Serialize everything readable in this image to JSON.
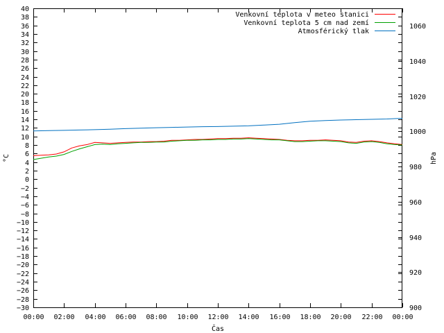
{
  "chart_data": {
    "type": "line",
    "xlabel": "Čas",
    "ylabel_left": "°C",
    "ylabel_right": "hPa",
    "x_ticks": [
      "00:00",
      "02:00",
      "04:00",
      "06:00",
      "08:00",
      "10:00",
      "12:00",
      "14:00",
      "16:00",
      "18:00",
      "20:00",
      "22:00",
      "00:00"
    ],
    "x_unit": "hours",
    "x_range": [
      0,
      24
    ],
    "ylim_left": [
      -30,
      40
    ],
    "ytick_step_left": 2,
    "ylim_right": [
      900,
      1070
    ],
    "ytick_step_right": 20,
    "right_ticks": [
      900,
      920,
      940,
      960,
      980,
      1000,
      1020,
      1040,
      1060
    ],
    "legend_position": "top-right",
    "grid": false,
    "series": [
      {
        "name": "Venkovní teplota v meteo stanici",
        "axis": "left",
        "color": "#ff0000",
        "x": [
          0,
          0.5,
          1,
          1.5,
          2,
          2.5,
          3,
          3.5,
          4,
          4.5,
          5,
          5.5,
          6,
          6.5,
          7,
          7.5,
          8,
          8.5,
          9,
          9.5,
          10,
          10.5,
          11,
          11.5,
          12,
          12.5,
          13,
          13.5,
          14,
          14.5,
          15,
          15.5,
          16,
          16.5,
          17,
          17.5,
          18,
          18.5,
          19,
          19.5,
          20,
          20.5,
          21,
          21.5,
          22,
          22.5,
          23,
          23.5,
          24
        ],
        "values": [
          5.5,
          5.6,
          5.7,
          5.9,
          6.4,
          7.3,
          7.8,
          8.1,
          8.6,
          8.5,
          8.4,
          8.5,
          8.6,
          8.7,
          8.7,
          8.8,
          8.8,
          8.9,
          9.1,
          9.1,
          9.2,
          9.3,
          9.3,
          9.4,
          9.5,
          9.5,
          9.6,
          9.6,
          9.7,
          9.6,
          9.5,
          9.4,
          9.3,
          9.1,
          9.0,
          9.0,
          9.1,
          9.1,
          9.2,
          9.1,
          9.0,
          8.7,
          8.6,
          8.9,
          9.0,
          8.8,
          8.5,
          8.3,
          8.1
        ]
      },
      {
        "name": "Venkovní teplota 5 cm nad zemí",
        "axis": "left",
        "color": "#00a000",
        "x": [
          0,
          0.5,
          1,
          1.5,
          2,
          2.5,
          3,
          3.5,
          4,
          4.5,
          5,
          5.5,
          6,
          6.5,
          7,
          7.5,
          8,
          8.5,
          9,
          9.5,
          10,
          10.5,
          11,
          11.5,
          12,
          12.5,
          13,
          13.5,
          14,
          14.5,
          15,
          15.5,
          16,
          16.5,
          17,
          17.5,
          18,
          18.5,
          19,
          19.5,
          20,
          20.5,
          21,
          21.5,
          22,
          22.5,
          23,
          23.5,
          24
        ],
        "values": [
          4.6,
          4.9,
          5.2,
          5.4,
          5.8,
          6.5,
          7.1,
          7.6,
          8.1,
          8.2,
          8.1,
          8.3,
          8.4,
          8.5,
          8.6,
          8.6,
          8.7,
          8.7,
          8.9,
          9.0,
          9.1,
          9.1,
          9.2,
          9.2,
          9.3,
          9.3,
          9.4,
          9.4,
          9.5,
          9.4,
          9.3,
          9.2,
          9.2,
          9.0,
          8.8,
          8.8,
          8.9,
          9.0,
          9.0,
          8.9,
          8.8,
          8.5,
          8.4,
          8.7,
          8.8,
          8.6,
          8.3,
          8.1,
          8.0
        ]
      },
      {
        "name": "Atmosférický tlak",
        "axis": "right",
        "color": "#0070c0",
        "x": [
          0,
          1,
          2,
          3,
          4,
          5,
          6,
          7,
          8,
          9,
          10,
          11,
          12,
          13,
          14,
          15,
          16,
          17,
          18,
          19,
          20,
          21,
          22,
          23,
          24
        ],
        "values": [
          1000.3,
          1000.5,
          1000.6,
          1000.8,
          1001.0,
          1001.3,
          1001.6,
          1001.9,
          1002.1,
          1002.3,
          1002.5,
          1002.7,
          1002.8,
          1003.0,
          1003.2,
          1003.6,
          1004.1,
          1005.0,
          1005.8,
          1006.2,
          1006.5,
          1006.7,
          1006.9,
          1007.1,
          1007.5
        ]
      }
    ]
  }
}
